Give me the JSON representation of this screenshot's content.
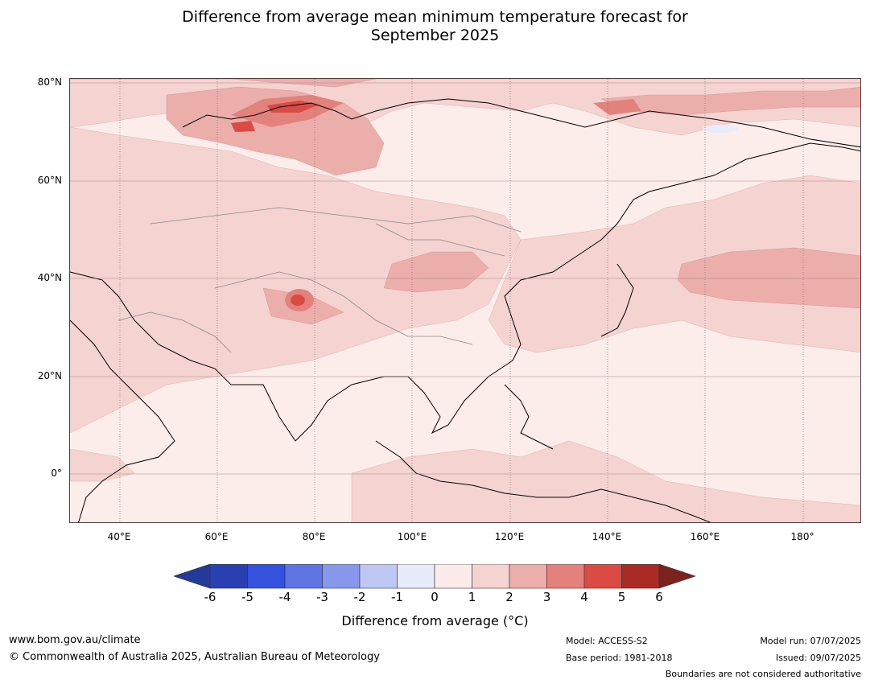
{
  "title_line1": "Difference from average mean minimum temperature forecast for",
  "title_line2": "September 2025",
  "lat_labels": [
    "80°N",
    "60°N",
    "40°N",
    "20°N",
    "0°"
  ],
  "lon_labels": [
    "40°E",
    "60°E",
    "80°E",
    "100°E",
    "120°E",
    "140°E",
    "160°E",
    "180°"
  ],
  "colorbar": {
    "ticks": [
      "-6",
      "-5",
      "-4",
      "-3",
      "-2",
      "-1",
      "0",
      "1",
      "2",
      "3",
      "4",
      "5",
      "6"
    ],
    "colors": [
      "#233a9c",
      "#2a3fb2",
      "#3452dd",
      "#5d74e3",
      "#8798eb",
      "#bfc8f4",
      "#e7ebfa",
      "#fcebea",
      "#f5d3d1",
      "#ebaeab",
      "#e3827d",
      "#d94b43",
      "#aa2b25",
      "#7c221e"
    ],
    "label": "Difference from average (°C)"
  },
  "footer": {
    "website": "www.bom.gov.au/climate",
    "copyright": "© Commonwealth of Australia 2025, Australian Bureau of Meteorology",
    "model": "Model: ACCESS-S2",
    "base_period": "Base period: 1981-2018",
    "model_run": "Model run: 07/07/2025",
    "issued": "Issued: 09/07/2025",
    "disclaimer": "Boundaries are not considered authoritative"
  }
}
